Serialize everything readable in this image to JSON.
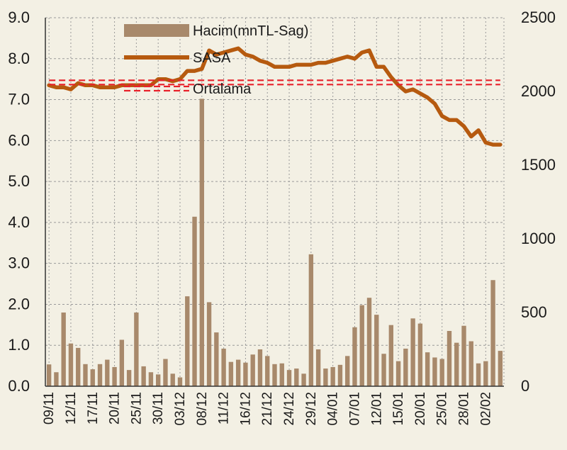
{
  "chart_data": {
    "type": "bar+line",
    "legend": {
      "placement": "top-center",
      "entries": [
        "Hacim(mnTL-Sag)",
        "SASA",
        "Ortalama"
      ]
    },
    "y_left": {
      "ticks": [
        "0.0",
        "1.0",
        "2.0",
        "3.0",
        "4.0",
        "5.0",
        "6.0",
        "7.0",
        "8.0",
        "9.0"
      ],
      "range": [
        0,
        9
      ]
    },
    "y_right": {
      "ticks": [
        "0",
        "500",
        "1000",
        "1500",
        "2000",
        "2500"
      ],
      "range": [
        0,
        2500
      ]
    },
    "x_tick_labels": [
      "09/11",
      "12/11",
      "17/11",
      "20/11",
      "25/11",
      "30/11",
      "03/12",
      "08/12",
      "11/12",
      "16/12",
      "21/12",
      "24/12",
      "29/12",
      "04/01",
      "07/01",
      "12/01",
      "15/01",
      "20/01",
      "25/01",
      "28/01",
      "02/02"
    ],
    "x_tick_index_step": 3,
    "grid": true,
    "colors": {
      "bars": "#a8896b",
      "sasa_line": "#b65a0f",
      "ortalama": "#e8202a",
      "background": "#f3f0e4",
      "grid": "#9a9a9a"
    },
    "series": [
      {
        "name": "Hacim(mnTL-Sag)",
        "type": "bar",
        "axis": "right",
        "values": [
          148,
          95,
          500,
          290,
          260,
          150,
          115,
          150,
          180,
          130,
          315,
          110,
          500,
          135,
          95,
          80,
          185,
          85,
          60,
          610,
          1150,
          1950,
          570,
          365,
          255,
          165,
          180,
          160,
          215,
          250,
          205,
          150,
          155,
          110,
          120,
          85,
          895,
          250,
          120,
          130,
          145,
          205,
          400,
          550,
          600,
          485,
          220,
          415,
          170,
          255,
          460,
          425,
          230,
          195,
          185,
          375,
          295,
          410,
          305,
          155,
          170,
          720,
          240
        ],
        "x_labels_every_3rd": [
          "09/11",
          "12/11",
          "17/11",
          "20/11",
          "25/11",
          "30/11",
          "03/12",
          "08/12",
          "11/12",
          "16/12",
          "21/12",
          "24/12",
          "29/12",
          "04/01",
          "07/01",
          "12/01",
          "15/01",
          "20/01",
          "25/01",
          "28/01",
          "02/02"
        ]
      },
      {
        "name": "SASA",
        "type": "line",
        "axis": "left",
        "values": [
          7.35,
          7.3,
          7.3,
          7.25,
          7.4,
          7.35,
          7.35,
          7.3,
          7.3,
          7.3,
          7.35,
          7.35,
          7.35,
          7.35,
          7.35,
          7.5,
          7.5,
          7.45,
          7.5,
          7.7,
          7.7,
          7.75,
          8.2,
          8.1,
          8.15,
          8.2,
          8.25,
          8.1,
          8.05,
          7.95,
          7.9,
          7.8,
          7.8,
          7.8,
          7.85,
          7.85,
          7.85,
          7.9,
          7.9,
          7.95,
          8.0,
          8.05,
          8.0,
          8.15,
          8.2,
          7.8,
          7.8,
          7.55,
          7.35,
          7.2,
          7.25,
          7.15,
          7.05,
          6.9,
          6.6,
          6.5,
          6.5,
          6.35,
          6.1,
          6.25,
          5.95,
          5.9,
          5.9
        ]
      },
      {
        "name": "Ortalama",
        "type": "line",
        "axis": "left",
        "style": "dashed",
        "values": [
          7.42
        ]
      }
    ]
  }
}
